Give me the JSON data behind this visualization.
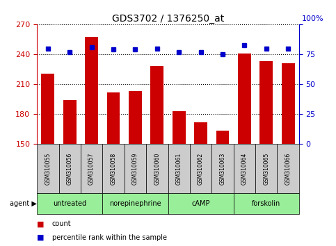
{
  "title": "GDS3702 / 1376250_at",
  "samples": [
    "GSM310055",
    "GSM310056",
    "GSM310057",
    "GSM310058",
    "GSM310059",
    "GSM310060",
    "GSM310061",
    "GSM310062",
    "GSM310063",
    "GSM310064",
    "GSM310065",
    "GSM310066"
  ],
  "counts": [
    221,
    194,
    258,
    202,
    203,
    228,
    183,
    172,
    163,
    241,
    233,
    231
  ],
  "percentiles": [
    80,
    77,
    81,
    79,
    79,
    80,
    77,
    77,
    75,
    83,
    80,
    80
  ],
  "ylim_left": [
    150,
    270
  ],
  "ylim_right": [
    0,
    100
  ],
  "yticks_left": [
    150,
    180,
    210,
    240,
    270
  ],
  "yticks_right": [
    0,
    25,
    50,
    75,
    100
  ],
  "bar_color": "#cc0000",
  "dot_color": "#0000cc",
  "agent_groups": [
    {
      "label": "untreated",
      "start": 0,
      "end": 3
    },
    {
      "label": "norepinephrine",
      "start": 3,
      "end": 6
    },
    {
      "label": "cAMP",
      "start": 6,
      "end": 9
    },
    {
      "label": "forskolin",
      "start": 9,
      "end": 12
    }
  ],
  "agent_bg_color": "#99ee99",
  "sample_bg_color": "#cccccc",
  "bar_width": 0.6,
  "dot_size": 5,
  "title_fontsize": 10,
  "tick_fontsize": 8,
  "label_fontsize": 7,
  "legend_fontsize": 7
}
